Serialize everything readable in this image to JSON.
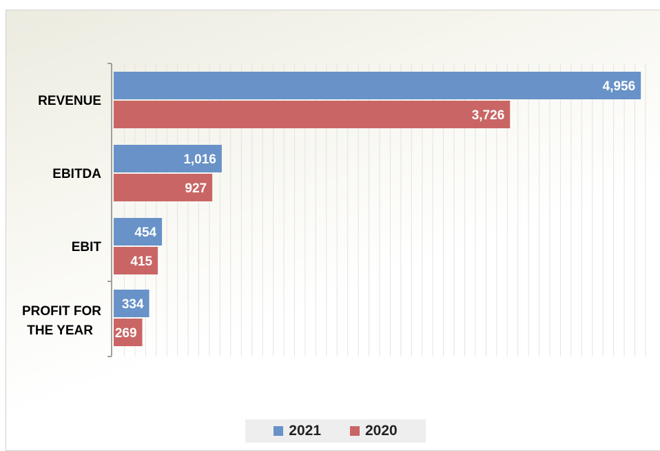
{
  "chart_data": {
    "type": "bar",
    "orientation": "horizontal",
    "title": "",
    "xlabel": "",
    "ylabel": "",
    "categories": [
      "REVENUE",
      "EBITDA",
      "EBIT",
      "PROFIT FOR THE YEAR"
    ],
    "series": [
      {
        "name": "2021",
        "color": "#6892c8",
        "values": [
          4956,
          1016,
          454,
          334
        ],
        "labels": [
          "4,956",
          "1,016",
          "454",
          "334"
        ]
      },
      {
        "name": "2020",
        "color": "#c96665",
        "values": [
          3726,
          927,
          415,
          269
        ],
        "labels": [
          "3,726",
          "927",
          "415",
          "269"
        ]
      }
    ],
    "xlim": [
      0,
      5000
    ],
    "grid": true,
    "legend_position": "bottom"
  }
}
